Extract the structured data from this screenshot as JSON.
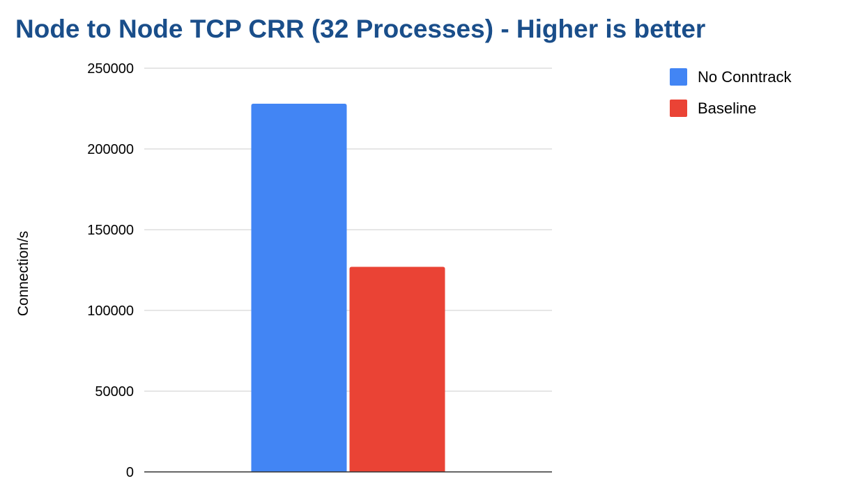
{
  "chart_data": {
    "type": "bar",
    "title": "Node to Node TCP CRR (32 Processes) - Higher is better",
    "xlabel": "",
    "ylabel": "Connection/s",
    "ylim": [
      0,
      250000
    ],
    "yticks": [
      "0",
      "50000",
      "100000",
      "150000",
      "200000",
      "250000"
    ],
    "ytick_values": [
      0,
      50000,
      100000,
      150000,
      200000,
      250000
    ],
    "grid": true,
    "legend_position": "top-right",
    "categories": [
      ""
    ],
    "series": [
      {
        "name": "No Conntrack",
        "values": [
          228000
        ],
        "color": "#4285F4"
      },
      {
        "name": "Baseline",
        "values": [
          127000
        ],
        "color": "#EA4335"
      }
    ],
    "title_color": "#1A4E8A",
    "grid_color": "#CCCCCC",
    "axis_color": "#333333"
  }
}
